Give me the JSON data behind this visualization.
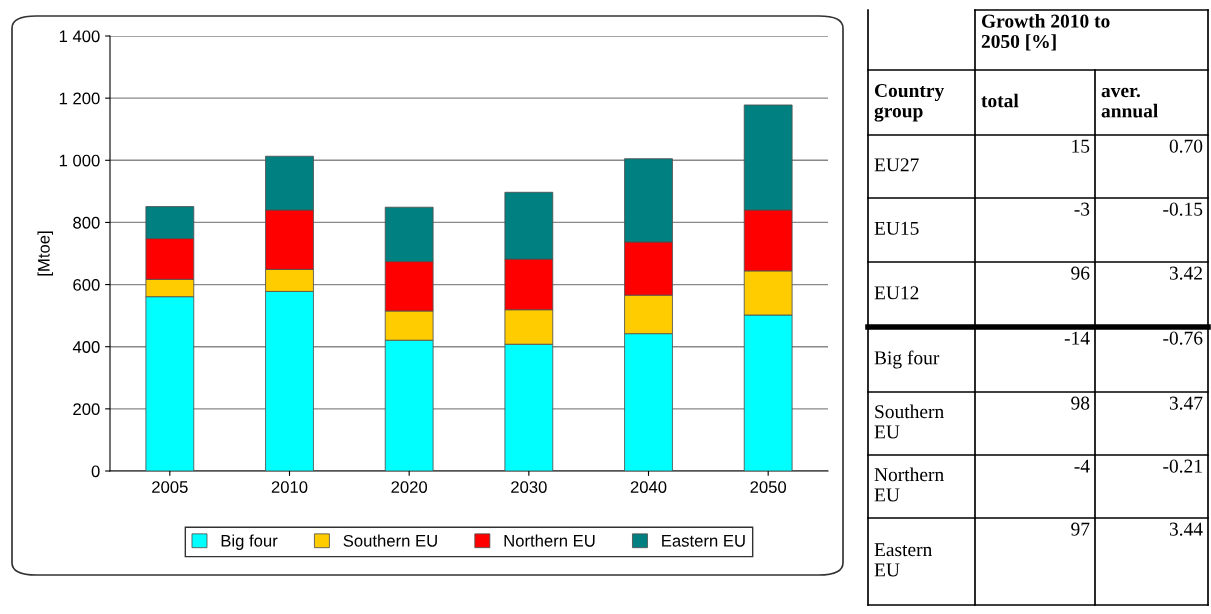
{
  "chart_data": [
    {
      "type": "bar",
      "stacked": true,
      "ylabel": "[Mtoe]",
      "categories": [
        "2005",
        "2010",
        "2020",
        "2030",
        "2040",
        "2050"
      ],
      "series": [
        {
          "name": "Big four",
          "color": "#00ffff",
          "values": [
            561,
            578,
            421,
            408,
            442,
            502
          ]
        },
        {
          "name": "Southern EU",
          "color": "#ffcc00",
          "values": [
            56,
            71,
            94,
            111,
            124,
            142
          ]
        },
        {
          "name": "Northern EU",
          "color": "#ff0000",
          "values": [
            131,
            191,
            159,
            163,
            171,
            196
          ]
        },
        {
          "name": "Eastern EU",
          "color": "#008080",
          "values": [
            103,
            173,
            175,
            215,
            268,
            338
          ]
        }
      ],
      "ylim": [
        0,
        1400
      ],
      "yticks": [
        0,
        200,
        400,
        600,
        800,
        {
          "value": 1000,
          "label": "1 000"
        },
        {
          "value": 1200,
          "label": "1 200"
        },
        {
          "value": 1400,
          "label": "1 400"
        }
      ],
      "grid": "y",
      "legend": "bottom"
    },
    {
      "type": "other",
      "title": "Growth 2010 to 2050 [%]",
      "annotations": [
        "Country group"
      ],
      "data_labels": true,
      "categories": [
        "EU27",
        "EU15",
        "EU12",
        "Big four",
        "Southern EU",
        "Northern EU",
        "Eastern EU"
      ],
      "series": [
        {
          "name": "total",
          "values": [
            15,
            -3,
            96,
            -14,
            98,
            -4,
            97
          ],
          "value_labels": [
            "15",
            "-3",
            "96",
            "-14",
            "98",
            "-4",
            "97"
          ]
        },
        {
          "name": "aver. annual",
          "values": [
            0.7,
            -0.15,
            3.42,
            -0.76,
            3.47,
            -0.21,
            3.44
          ],
          "value_labels": [
            "0.70",
            "-0.15",
            "3.42",
            "-0.76",
            "3.47",
            "-0.21",
            "3.44"
          ]
        }
      ]
    }
  ]
}
